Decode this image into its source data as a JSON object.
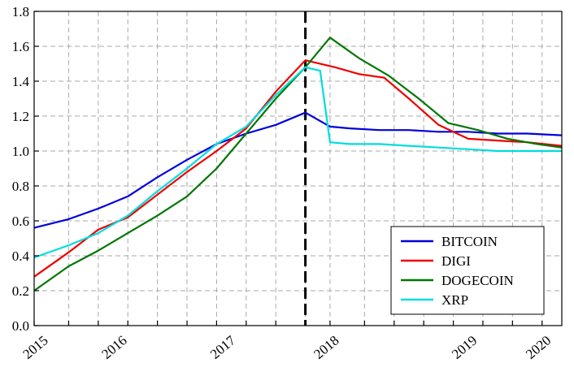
{
  "chart_data": {
    "type": "line",
    "title": "",
    "xlabel": "",
    "ylabel": "",
    "xlim": [
      2014.8,
      2020.15
    ],
    "ylim": [
      0,
      1.8
    ],
    "grid": true,
    "legend_position": "bottom-right",
    "vertical_marker": {
      "x": 2017.55,
      "style": "dashed",
      "color": "#000000"
    },
    "x_ticks": [
      {
        "value": 2014.9,
        "label": "2015"
      },
      {
        "value": 2015.7,
        "label": "2016"
      },
      {
        "value": 2016.8,
        "label": "2017"
      },
      {
        "value": 2017.85,
        "label": "2018"
      },
      {
        "value": 2019.25,
        "label": "2019"
      },
      {
        "value": 2020.0,
        "label": "2020"
      }
    ],
    "y_ticks": [
      {
        "value": 0.0,
        "label": "0.0"
      },
      {
        "value": 0.2,
        "label": "0.2"
      },
      {
        "value": 0.4,
        "label": "0.4"
      },
      {
        "value": 0.6,
        "label": "0.6"
      },
      {
        "value": 0.8,
        "label": "0.8"
      },
      {
        "value": 1.0,
        "label": "1.0"
      },
      {
        "value": 1.2,
        "label": "1.2"
      },
      {
        "value": 1.4,
        "label": "1.4"
      },
      {
        "value": 1.6,
        "label": "1.6"
      },
      {
        "value": 1.8,
        "label": "1.8"
      }
    ],
    "grid_x": [
      2014.8,
      2015.15,
      2015.45,
      2015.75,
      2016.05,
      2016.35,
      2016.65,
      2016.95,
      2017.25,
      2017.55,
      2017.8,
      2018.15,
      2018.45,
      2018.75,
      2019.05,
      2019.35,
      2019.65,
      2019.95
    ],
    "series": [
      {
        "name": "BITCOIN",
        "color": "#0000dd",
        "x": [
          2014.8,
          2015.15,
          2015.45,
          2015.75,
          2016.05,
          2016.35,
          2016.65,
          2016.95,
          2017.25,
          2017.55,
          2017.8,
          2018.0,
          2018.3,
          2018.6,
          2018.9,
          2019.2,
          2019.5,
          2019.8,
          2020.15
        ],
        "y": [
          0.56,
          0.61,
          0.67,
          0.74,
          0.85,
          0.95,
          1.04,
          1.1,
          1.15,
          1.22,
          1.14,
          1.13,
          1.12,
          1.12,
          1.11,
          1.11,
          1.1,
          1.1,
          1.09
        ]
      },
      {
        "name": "DIGI",
        "color": "#ee0000",
        "x": [
          2014.8,
          2015.15,
          2015.45,
          2015.75,
          2016.05,
          2016.35,
          2016.65,
          2016.95,
          2017.25,
          2017.55,
          2017.85,
          2018.1,
          2018.35,
          2018.6,
          2018.9,
          2019.2,
          2019.5,
          2019.8,
          2020.15
        ],
        "y": [
          0.28,
          0.42,
          0.55,
          0.62,
          0.75,
          0.88,
          1.0,
          1.13,
          1.34,
          1.52,
          1.48,
          1.44,
          1.42,
          1.3,
          1.15,
          1.07,
          1.06,
          1.05,
          1.03
        ]
      },
      {
        "name": "DOGECOIN",
        "color": "#007700",
        "x": [
          2014.8,
          2015.15,
          2015.45,
          2015.75,
          2016.05,
          2016.35,
          2016.65,
          2016.95,
          2017.25,
          2017.55,
          2017.8,
          2018.1,
          2018.4,
          2018.7,
          2019.0,
          2019.3,
          2019.6,
          2019.9,
          2020.15
        ],
        "y": [
          0.2,
          0.34,
          0.43,
          0.53,
          0.63,
          0.74,
          0.9,
          1.1,
          1.3,
          1.48,
          1.65,
          1.53,
          1.43,
          1.3,
          1.16,
          1.12,
          1.07,
          1.04,
          1.02
        ]
      },
      {
        "name": "XRP",
        "color": "#00dddd",
        "x": [
          2014.8,
          2015.15,
          2015.45,
          2015.75,
          2016.05,
          2016.35,
          2016.65,
          2016.95,
          2017.25,
          2017.55,
          2017.7,
          2017.8,
          2018.0,
          2018.3,
          2018.6,
          2018.9,
          2019.2,
          2019.5,
          2020.15
        ],
        "y": [
          0.39,
          0.46,
          0.53,
          0.63,
          0.77,
          0.9,
          1.04,
          1.14,
          1.32,
          1.48,
          1.46,
          1.05,
          1.04,
          1.04,
          1.03,
          1.02,
          1.01,
          1.0,
          1.0
        ]
      }
    ]
  }
}
